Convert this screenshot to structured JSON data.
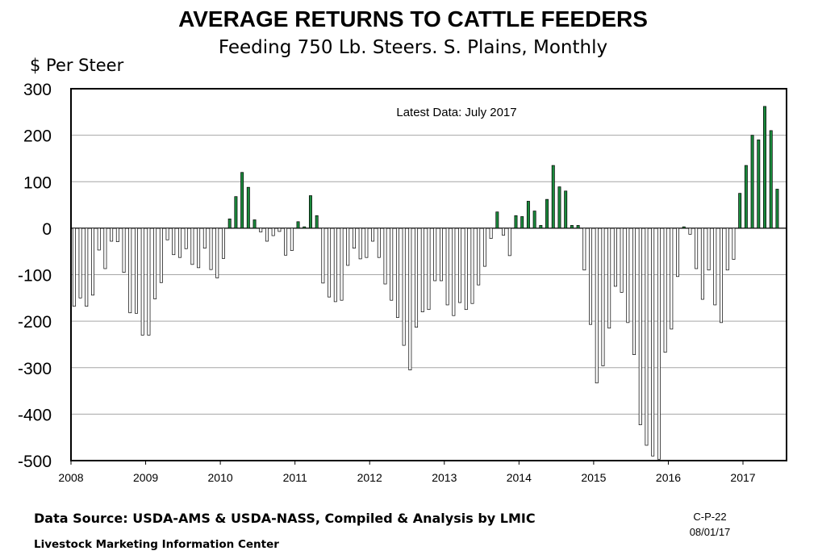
{
  "header": {
    "title": "AVERAGE RETURNS TO CATTLE FEEDERS",
    "subtitle": "Feeding 750 Lb. Steers. S. Plains, Monthly",
    "y_axis_label": "$ Per Steer"
  },
  "footer": {
    "source": "Data Source:  USDA-AMS & USDA-NASS, Compiled & Analysis by LMIC",
    "organization": "Livestock Marketing Information Center",
    "chart_code": "C-P-22",
    "chart_date": "08/01/17"
  },
  "chart_data": {
    "type": "bar",
    "title": "AVERAGE RETURNS TO CATTLE FEEDERS",
    "subtitle": "Feeding 750 Lb. Steers. S. Plains, Monthly",
    "ylabel": "$ Per Steer",
    "xlabel": "",
    "ylim": [
      -500,
      300
    ],
    "yticks": [
      300,
      200,
      100,
      0,
      -100,
      -200,
      -300,
      -400,
      -500
    ],
    "xticks": [
      "2008",
      "2009",
      "2010",
      "2011",
      "2012",
      "2013",
      "2014",
      "2015",
      "2016",
      "2017"
    ],
    "grid": true,
    "annotation": "Latest Data:  July 2017",
    "positive_color": "#1a8a3c",
    "negative_color": "#ffffff",
    "start": "2008-01",
    "end": "2017-07",
    "values": [
      -168,
      -150,
      -168,
      -144,
      -47,
      -87,
      -28,
      -29,
      -95,
      -182,
      -183,
      -230,
      -230,
      -152,
      -117,
      -25,
      -57,
      -63,
      -44,
      -78,
      -85,
      -43,
      -89,
      -107,
      -65,
      20,
      68,
      120,
      88,
      18,
      -8,
      -28,
      -16,
      -7,
      -58,
      -48,
      14,
      3,
      70,
      27,
      -118,
      -148,
      -158,
      -155,
      -80,
      -43,
      -66,
      -63,
      -28,
      -63,
      -120,
      -155,
      -192,
      -252,
      -305,
      -213,
      -180,
      -175,
      -113,
      -113,
      -165,
      -188,
      -160,
      -175,
      -162,
      -122,
      -82,
      -22,
      35,
      -15,
      -59,
      27,
      25,
      58,
      37,
      6,
      62,
      135,
      89,
      80,
      6,
      6,
      -90,
      -207,
      -333,
      -296,
      -215,
      -125,
      -138,
      -203,
      -272,
      -423,
      -467,
      -490,
      -497,
      -267,
      -217,
      -104,
      3,
      -13,
      -87,
      -153,
      -90,
      -165,
      -203,
      -90,
      -67,
      75,
      135,
      200,
      190,
      262,
      210,
      84
    ]
  }
}
